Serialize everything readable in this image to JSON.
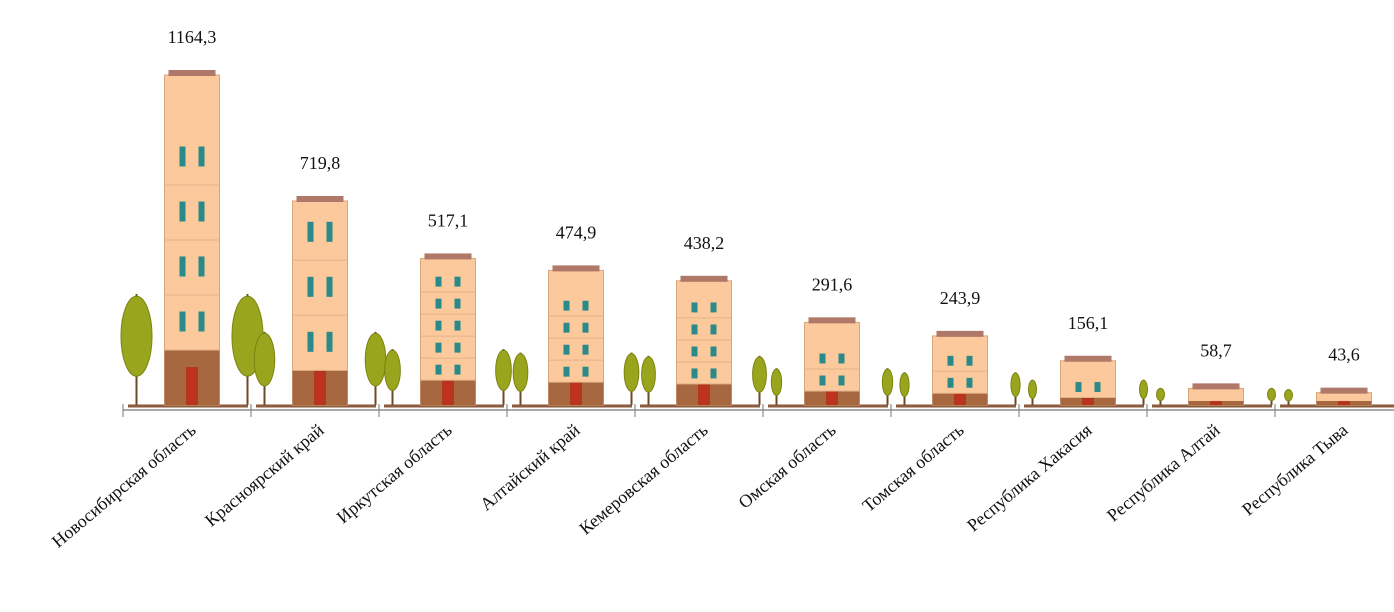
{
  "chart_data": {
    "type": "bar",
    "categories": [
      "Новосибирская область",
      "Красноярский край",
      "Иркутская область",
      "Алтайский край",
      "Кемеровская область",
      "Омская область",
      "Томская область",
      "Республика Хакасия",
      "Республика Алтай",
      "Республика Тыва"
    ],
    "values": [
      1164.3,
      719.8,
      517.1,
      474.9,
      438.2,
      291.6,
      243.9,
      156.1,
      58.7,
      43.6
    ],
    "value_labels": [
      "1164,3",
      "719,8",
      "517,1",
      "474,9",
      "438,2",
      "291,6",
      "243,9",
      "156,1",
      "58,7",
      "43,6"
    ],
    "color": "#fbc99b"
  }
}
